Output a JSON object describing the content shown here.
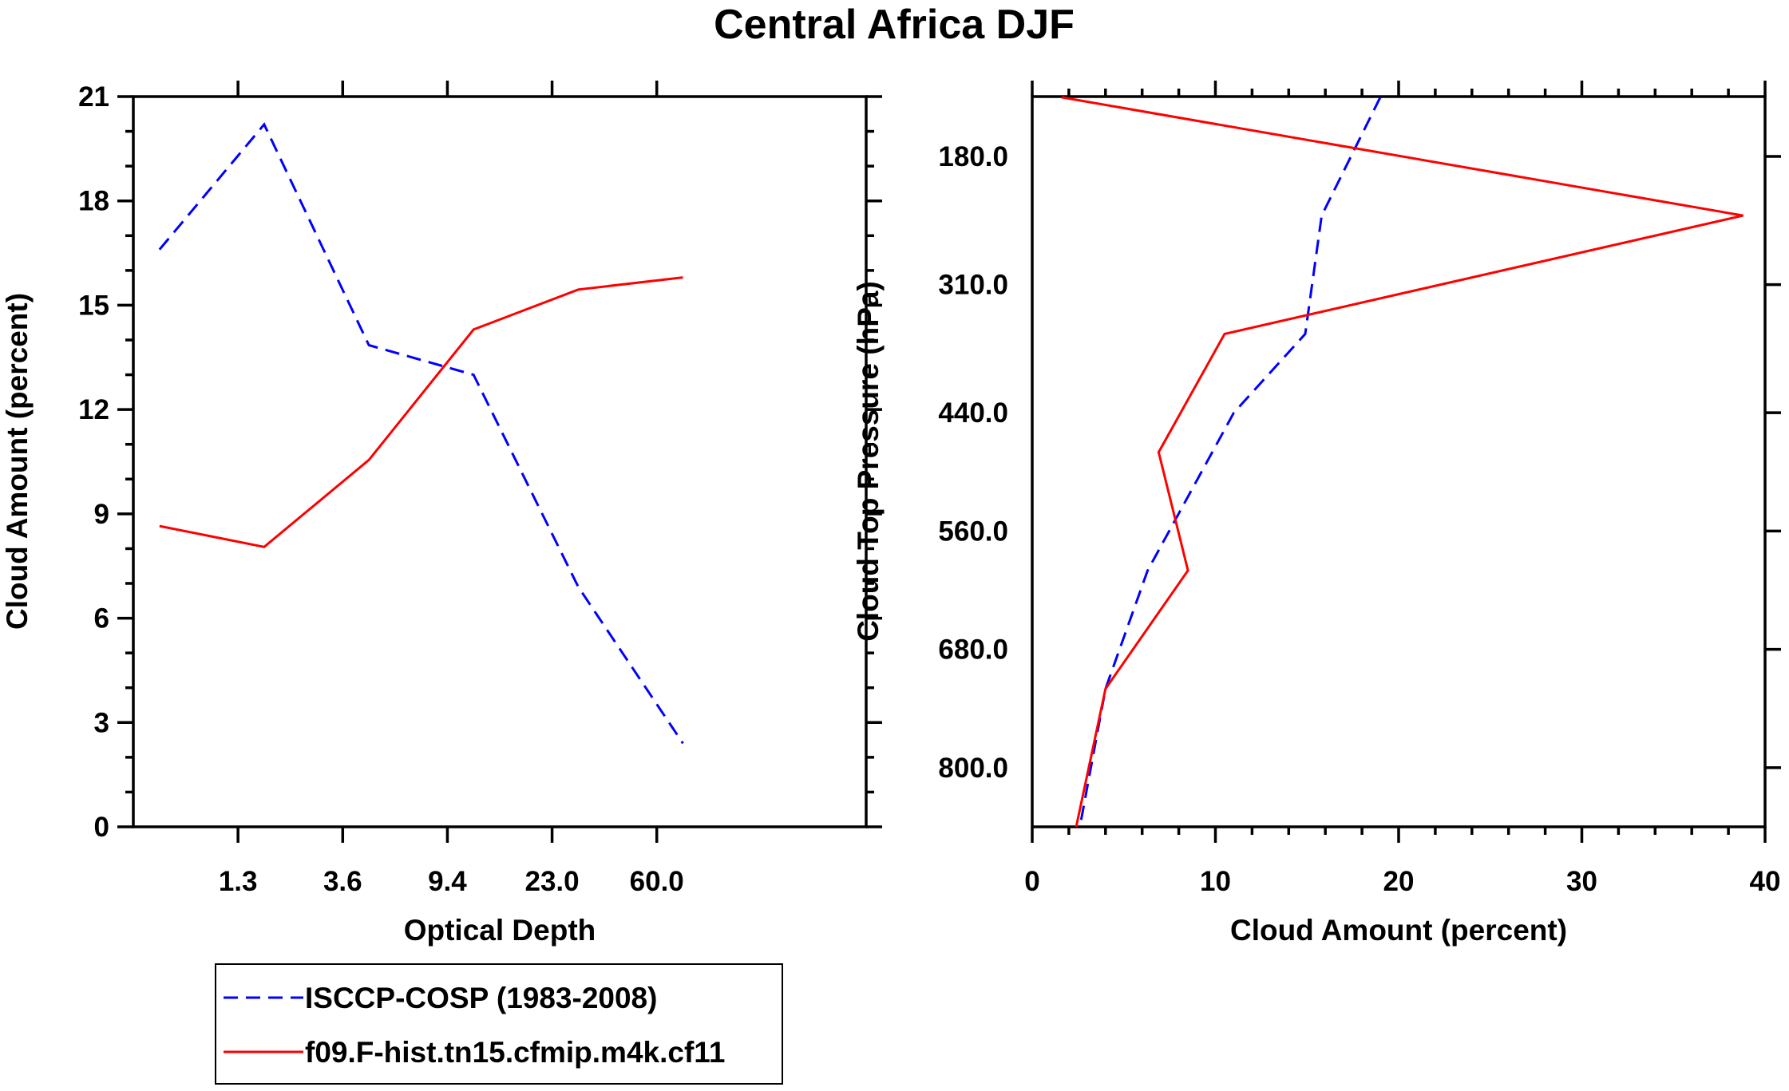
{
  "title": "Central Africa DJF",
  "chart_data": [
    {
      "type": "line",
      "xlabel": "Optical Depth",
      "ylabel": "Cloud Amount (percent)",
      "x_tick_labels": [
        "1.3",
        "3.6",
        "9.4",
        "23.0",
        "60.0"
      ],
      "y_ticks": [
        0,
        3,
        6,
        9,
        12,
        15,
        18,
        21
      ],
      "y_tick_labels": [
        "0",
        "3",
        "6",
        "9",
        "12",
        "15",
        "18",
        "21"
      ],
      "ylim": [
        0,
        21
      ],
      "x_bins": 7,
      "series": [
        {
          "name": "ISCCP-COSP (1983-2008)",
          "color": "#0000ff",
          "dash": "dashed",
          "points": [
            [
              0.5,
              16.6
            ],
            [
              2.5,
              20.2
            ],
            [
              4.5,
              13.85
            ],
            [
              6.5,
              13.0
            ],
            [
              8.5,
              6.9
            ],
            [
              10.5,
              2.4
            ]
          ]
        },
        {
          "name": "f09.F-hist.tn15.cfmip.m4k.cf11",
          "color": "#ff0000",
          "dash": "solid",
          "points": [
            [
              0.5,
              8.65
            ],
            [
              2.5,
              8.05
            ],
            [
              4.5,
              10.55
            ],
            [
              6.5,
              14.3
            ],
            [
              8.5,
              15.45
            ],
            [
              10.5,
              15.8
            ]
          ]
        }
      ]
    },
    {
      "type": "line",
      "xlabel": "Cloud Amount (percent)",
      "ylabel": "Cloud Top Pressure (hPa)",
      "x_ticks": [
        0,
        10,
        20,
        30,
        40
      ],
      "x_tick_labels": [
        "0",
        "10",
        "20",
        "30",
        "40"
      ],
      "xlim": [
        0,
        40
      ],
      "y_tick_labels": [
        "180.0",
        "310.0",
        "440.0",
        "560.0",
        "680.0",
        "800.0"
      ],
      "y_tick_values": [
        180,
        310,
        440,
        560,
        680,
        800
      ],
      "y_orientation": "pressure decreasing upward",
      "series": [
        {
          "name": "ISCCP-COSP (1983-2008)",
          "color": "#0000ff",
          "dash": "dashed",
          "points": [
            [
              19.0,
              120
            ],
            [
              15.8,
              240
            ],
            [
              14.9,
              360
            ],
            [
              11.0,
              440
            ],
            [
              6.3,
              600
            ],
            [
              4.0,
              720
            ],
            [
              2.6,
              860
            ]
          ]
        },
        {
          "name": "f09.F-hist.tn15.cfmip.m4k.cf11",
          "color": "#ff0000",
          "dash": "solid",
          "points": [
            [
              1.6,
              120
            ],
            [
              38.8,
              240
            ],
            [
              10.5,
              360
            ],
            [
              6.9,
              480
            ],
            [
              8.5,
              600
            ],
            [
              4.0,
              720
            ],
            [
              2.4,
              860
            ]
          ]
        }
      ]
    }
  ],
  "legend": [
    {
      "label": "ISCCP-COSP (1983-2008)",
      "color": "#0000ff",
      "dash": "dashed"
    },
    {
      "label": "f09.F-hist.tn15.cfmip.m4k.cf11",
      "color": "#ff0000",
      "dash": "solid"
    }
  ]
}
